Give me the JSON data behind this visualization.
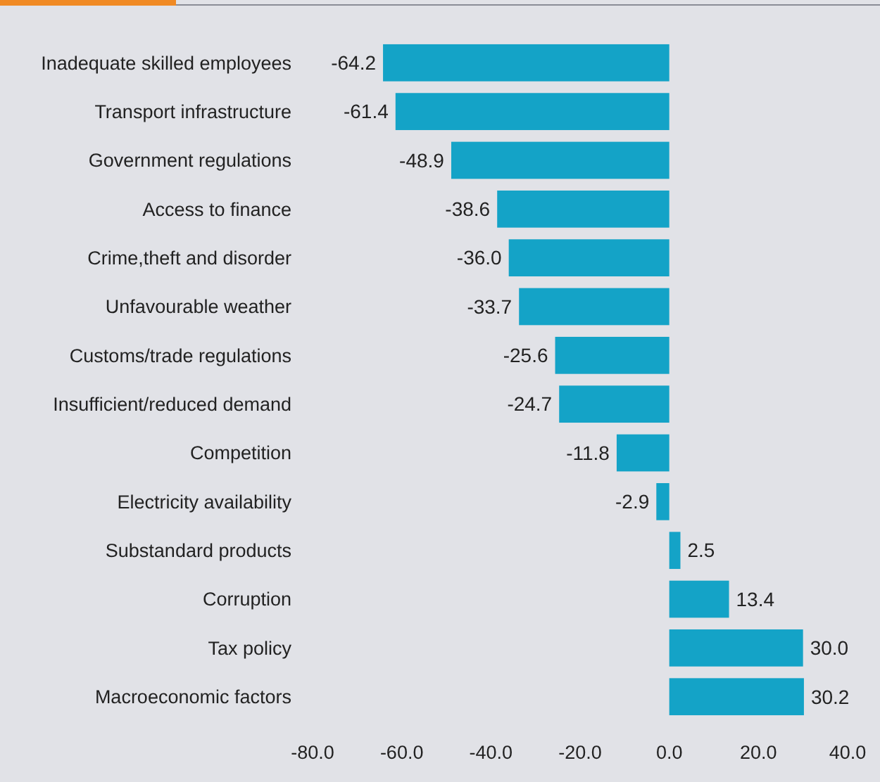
{
  "chart_data": {
    "type": "bar",
    "orientation": "horizontal",
    "categories": [
      "Inadequate skilled employees",
      "Transport infrastructure",
      "Government regulations",
      "Access to finance",
      "Crime,theft and disorder",
      "Unfavourable weather",
      "Customs/trade regulations",
      "Insufficient/reduced demand",
      "Competition",
      "Electricity availability",
      "Substandard products",
      "Corruption",
      "Tax policy",
      "Macroeconomic factors"
    ],
    "values": [
      -64.2,
      -61.4,
      -48.9,
      -38.6,
      -36.0,
      -33.7,
      -25.6,
      -24.7,
      -11.8,
      -2.9,
      2.5,
      13.4,
      30.0,
      30.2
    ],
    "value_labels": [
      "-64.2",
      "-61.4",
      "-48.9",
      "-38.6",
      "-36.0",
      "-33.7",
      "-25.6",
      "-24.7",
      "-11.8",
      "-2.9",
      "2.5",
      "13.4",
      "30.0",
      "30.2"
    ],
    "color": "#14a3c7",
    "xlim": [
      -80,
      40
    ],
    "xticks": [
      {
        "value": -80,
        "label": "-80.0"
      },
      {
        "value": -60,
        "label": "-60.0"
      },
      {
        "value": -40,
        "label": "-40.0"
      },
      {
        "value": -20,
        "label": "-20.0"
      },
      {
        "value": 0,
        "label": "0.0"
      },
      {
        "value": 20,
        "label": "20.0"
      },
      {
        "value": 40,
        "label": "40.0"
      }
    ],
    "grid": false
  }
}
